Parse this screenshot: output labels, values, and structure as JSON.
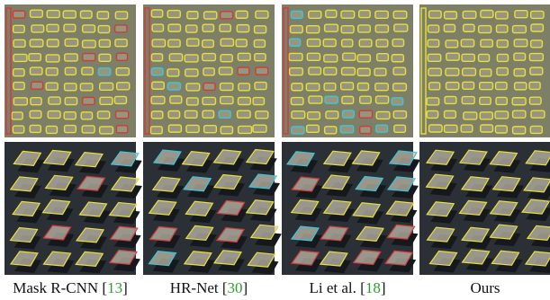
{
  "figure": {
    "panels": [
      {
        "caption": [
          "Mask R-CNN [",
          "13",
          "]"
        ]
      },
      {
        "caption": [
          "HR-Net [",
          "30",
          "]"
        ]
      },
      {
        "caption": [
          "Li et al. [",
          "18",
          "]"
        ]
      },
      {
        "caption": [
          "Ours"
        ]
      }
    ]
  }
}
